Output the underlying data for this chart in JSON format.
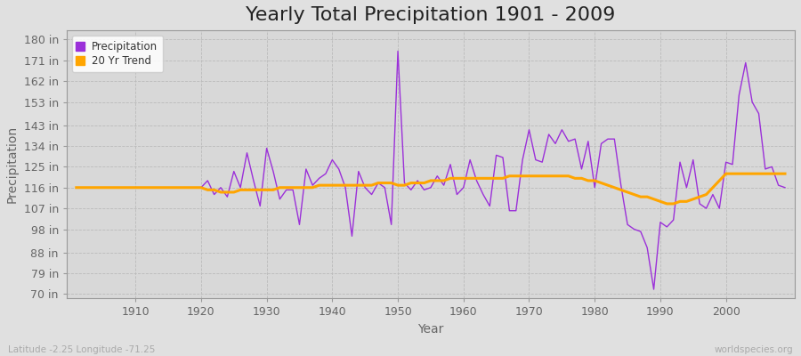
{
  "title": "Yearly Total Precipitation 1901 - 2009",
  "xlabel": "Year",
  "ylabel": "Precipitation",
  "years": [
    1901,
    1902,
    1903,
    1904,
    1905,
    1906,
    1907,
    1908,
    1909,
    1910,
    1911,
    1912,
    1913,
    1914,
    1915,
    1916,
    1917,
    1918,
    1919,
    1920,
    1921,
    1922,
    1923,
    1924,
    1925,
    1926,
    1927,
    1928,
    1929,
    1930,
    1931,
    1932,
    1933,
    1934,
    1935,
    1936,
    1937,
    1938,
    1939,
    1940,
    1941,
    1942,
    1943,
    1944,
    1945,
    1946,
    1947,
    1948,
    1949,
    1950,
    1951,
    1952,
    1953,
    1954,
    1955,
    1956,
    1957,
    1958,
    1959,
    1960,
    1961,
    1962,
    1963,
    1964,
    1965,
    1966,
    1967,
    1968,
    1969,
    1970,
    1971,
    1972,
    1973,
    1974,
    1975,
    1976,
    1977,
    1978,
    1979,
    1980,
    1981,
    1982,
    1983,
    1984,
    1985,
    1986,
    1987,
    1988,
    1989,
    1990,
    1991,
    1992,
    1993,
    1994,
    1995,
    1996,
    1997,
    1998,
    1999,
    2000,
    2001,
    2002,
    2003,
    2004,
    2005,
    2006,
    2007,
    2008,
    2009
  ],
  "precipitation": [
    116,
    116,
    116,
    116,
    116,
    116,
    116,
    116,
    116,
    116,
    116,
    116,
    116,
    116,
    116,
    116,
    116,
    116,
    116,
    116,
    119,
    113,
    116,
    112,
    123,
    116,
    131,
    119,
    108,
    133,
    123,
    111,
    115,
    115,
    100,
    124,
    117,
    120,
    122,
    128,
    124,
    116,
    95,
    123,
    116,
    113,
    118,
    116,
    100,
    175,
    118,
    115,
    119,
    115,
    116,
    121,
    117,
    126,
    113,
    116,
    128,
    119,
    113,
    108,
    130,
    129,
    106,
    106,
    128,
    141,
    128,
    127,
    139,
    135,
    141,
    136,
    137,
    124,
    136,
    116,
    135,
    137,
    137,
    117,
    100,
    98,
    97,
    90,
    72,
    101,
    99,
    102,
    127,
    116,
    128,
    109,
    107,
    113,
    107,
    127,
    126,
    156,
    170,
    153,
    148,
    124,
    125,
    117,
    116
  ],
  "trend": [
    116,
    116,
    116,
    116,
    116,
    116,
    116,
    116,
    116,
    116,
    116,
    116,
    116,
    116,
    116,
    116,
    116,
    116,
    116,
    116,
    115,
    115,
    114,
    114,
    114,
    115,
    115,
    115,
    115,
    115,
    115,
    116,
    116,
    116,
    116,
    116,
    116,
    117,
    117,
    117,
    117,
    117,
    117,
    117,
    117,
    117,
    118,
    118,
    118,
    117,
    117,
    118,
    118,
    118,
    119,
    119,
    119,
    120,
    120,
    120,
    120,
    120,
    120,
    120,
    120,
    120,
    121,
    121,
    121,
    121,
    121,
    121,
    121,
    121,
    121,
    121,
    120,
    120,
    119,
    119,
    118,
    117,
    116,
    115,
    114,
    113,
    112,
    112,
    111,
    110,
    109,
    109,
    110,
    110,
    111,
    112,
    113,
    116,
    119,
    122,
    122,
    122,
    122,
    122,
    122,
    122,
    122,
    122,
    122
  ],
  "precip_color": "#9b30d9",
  "trend_color": "#ffa500",
  "fig_bg_color": "#e0e0e0",
  "plot_bg_color": "#d8d8d8",
  "yticks": [
    70,
    79,
    88,
    98,
    107,
    116,
    125,
    134,
    143,
    153,
    162,
    171,
    180
  ],
  "ytick_labels": [
    "70 in",
    "79 in",
    "88 in",
    "98 in",
    "107 in",
    "116 in",
    "125 in",
    "134 in",
    "143 in",
    "153 in",
    "162 in",
    "171 in",
    "180 in"
  ],
  "ylim": [
    68,
    184
  ],
  "xlim": [
    1899.5,
    2010.5
  ],
  "xticks": [
    1910,
    1920,
    1930,
    1940,
    1950,
    1960,
    1970,
    1980,
    1990,
    2000
  ],
  "bottom_left_text": "Latitude -2.25 Longitude -71.25",
  "bottom_right_text": "worldspecies.org",
  "legend_labels": [
    "Precipitation",
    "20 Yr Trend"
  ],
  "title_fontsize": 16,
  "label_fontsize": 10,
  "tick_fontsize": 9,
  "grid_color": "#bbbbbb",
  "text_color": "#666666",
  "spine_color": "#999999"
}
